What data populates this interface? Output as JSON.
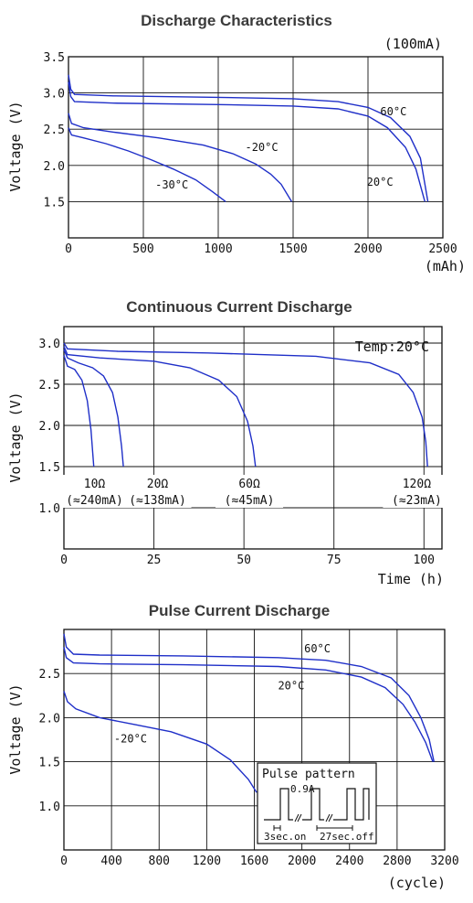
{
  "chart_data": [
    {
      "type": "line",
      "title": "Discharge Characteristics",
      "unit_note": "(100mA)",
      "ylabel": "Voltage (V)",
      "xlabel": "(mAh)",
      "xlim": [
        0,
        2500
      ],
      "ylim": [
        1.0,
        3.5
      ],
      "x_ticks": [
        "0",
        "500",
        "1000",
        "1500",
        "2000",
        "2500"
      ],
      "y_ticks": [
        "1.5",
        "2.0",
        "2.5",
        "3.0",
        "3.5"
      ],
      "series": [
        {
          "name": "60°C",
          "points": [
            [
              0,
              3.25
            ],
            [
              15,
              3.05
            ],
            [
              40,
              2.98
            ],
            [
              300,
              2.96
            ],
            [
              1000,
              2.94
            ],
            [
              1500,
              2.92
            ],
            [
              1800,
              2.88
            ],
            [
              2000,
              2.8
            ],
            [
              2150,
              2.66
            ],
            [
              2280,
              2.4
            ],
            [
              2350,
              2.1
            ],
            [
              2400,
              1.5
            ]
          ]
        },
        {
          "name": "20°C",
          "points": [
            [
              0,
              3.15
            ],
            [
              15,
              2.95
            ],
            [
              40,
              2.88
            ],
            [
              300,
              2.86
            ],
            [
              1000,
              2.84
            ],
            [
              1500,
              2.82
            ],
            [
              1800,
              2.78
            ],
            [
              2000,
              2.68
            ],
            [
              2130,
              2.52
            ],
            [
              2250,
              2.25
            ],
            [
              2320,
              1.95
            ],
            [
              2380,
              1.5
            ]
          ]
        },
        {
          "name": "-20°C",
          "points": [
            [
              0,
              2.72
            ],
            [
              20,
              2.58
            ],
            [
              100,
              2.52
            ],
            [
              300,
              2.46
            ],
            [
              600,
              2.38
            ],
            [
              900,
              2.28
            ],
            [
              1100,
              2.16
            ],
            [
              1250,
              2.02
            ],
            [
              1350,
              1.88
            ],
            [
              1420,
              1.74
            ],
            [
              1490,
              1.5
            ]
          ]
        },
        {
          "name": "-30°C",
          "points": [
            [
              0,
              2.52
            ],
            [
              20,
              2.42
            ],
            [
              100,
              2.38
            ],
            [
              250,
              2.3
            ],
            [
              400,
              2.2
            ],
            [
              550,
              2.08
            ],
            [
              700,
              1.95
            ],
            [
              850,
              1.8
            ],
            [
              960,
              1.64
            ],
            [
              1050,
              1.5
            ]
          ]
        }
      ],
      "series_labels": [
        {
          "text": "60°C",
          "x": 2170,
          "y": 2.69
        },
        {
          "text": "20°C",
          "x": 2080,
          "y": 1.72
        },
        {
          "text": "-20°C",
          "x": 1290,
          "y": 2.2
        },
        {
          "text": "-30°C",
          "x": 690,
          "y": 1.68
        }
      ]
    },
    {
      "type": "line",
      "title": "Continuous Current Discharge",
      "unit_note": "Temp:20°C",
      "ylabel": "Voltage (V)",
      "xlabel": "Time (h)",
      "xlim": [
        0,
        105
      ],
      "ylim": [
        0.5,
        3.2
      ],
      "x_ticks": [
        "0",
        "25",
        "50",
        "75",
        "100"
      ],
      "y_ticks": [
        "1.0",
        "1.5",
        "2.0",
        "2.5",
        "3.0"
      ],
      "series": [
        {
          "name": "10Ω (≈240mA)",
          "points": [
            [
              0,
              2.85
            ],
            [
              1,
              2.72
            ],
            [
              3,
              2.68
            ],
            [
              5,
              2.55
            ],
            [
              6.5,
              2.3
            ],
            [
              7.5,
              1.95
            ],
            [
              8.3,
              1.5
            ]
          ]
        },
        {
          "name": "20Ω (≈138mA)",
          "points": [
            [
              0,
              2.92
            ],
            [
              1,
              2.82
            ],
            [
              4,
              2.76
            ],
            [
              8,
              2.7
            ],
            [
              11,
              2.6
            ],
            [
              13.5,
              2.4
            ],
            [
              15,
              2.1
            ],
            [
              16,
              1.75
            ],
            [
              16.5,
              1.5
            ]
          ]
        },
        {
          "name": "60Ω (≈45mA)",
          "points": [
            [
              0,
              2.96
            ],
            [
              1,
              2.86
            ],
            [
              10,
              2.82
            ],
            [
              25,
              2.78
            ],
            [
              35,
              2.7
            ],
            [
              43,
              2.55
            ],
            [
              48,
              2.35
            ],
            [
              51,
              2.05
            ],
            [
              52.5,
              1.75
            ],
            [
              53.2,
              1.5
            ]
          ]
        },
        {
          "name": "120Ω (≈23mA)",
          "points": [
            [
              0,
              3.0
            ],
            [
              1,
              2.93
            ],
            [
              15,
              2.9
            ],
            [
              40,
              2.88
            ],
            [
              70,
              2.84
            ],
            [
              85,
              2.76
            ],
            [
              93,
              2.62
            ],
            [
              97,
              2.4
            ],
            [
              99.5,
              2.1
            ],
            [
              100.5,
              1.8
            ],
            [
              101,
              1.5
            ]
          ]
        }
      ],
      "series_labels": [
        {
          "name": "10Ω",
          "current": "(≈240mA)",
          "x": 8.5
        },
        {
          "name": "20Ω",
          "current": "(≈138mA)",
          "x": 26
        },
        {
          "name": "60Ω",
          "current": "(≈45mA)",
          "x": 51.5
        },
        {
          "name": "120Ω",
          "current": "(≈23mA)",
          "x": 98
        }
      ]
    },
    {
      "type": "line",
      "title": "Pulse Current Discharge",
      "ylabel": "Voltage (V)",
      "xlabel": "(cycle)",
      "xlim": [
        0,
        3200
      ],
      "ylim": [
        0.5,
        3.0
      ],
      "x_ticks": [
        "0",
        "400",
        "800",
        "1200",
        "1600",
        "2000",
        "2400",
        "2800",
        "3200"
      ],
      "y_ticks": [
        "1.0",
        "1.5",
        "2.0",
        "2.5"
      ],
      "series": [
        {
          "name": "60°C",
          "points": [
            [
              0,
              2.95
            ],
            [
              20,
              2.8
            ],
            [
              80,
              2.72
            ],
            [
              300,
              2.71
            ],
            [
              1000,
              2.7
            ],
            [
              1800,
              2.68
            ],
            [
              2200,
              2.65
            ],
            [
              2500,
              2.58
            ],
            [
              2750,
              2.45
            ],
            [
              2900,
              2.25
            ],
            [
              3000,
              2.0
            ],
            [
              3070,
              1.75
            ],
            [
              3110,
              1.5
            ]
          ]
        },
        {
          "name": "20°C",
          "points": [
            [
              0,
              2.8
            ],
            [
              20,
              2.68
            ],
            [
              80,
              2.62
            ],
            [
              300,
              2.61
            ],
            [
              1000,
              2.6
            ],
            [
              1800,
              2.58
            ],
            [
              2200,
              2.54
            ],
            [
              2500,
              2.46
            ],
            [
              2700,
              2.34
            ],
            [
              2850,
              2.15
            ],
            [
              2950,
              1.95
            ],
            [
              3040,
              1.72
            ],
            [
              3100,
              1.5
            ]
          ]
        },
        {
          "name": "-20°C",
          "points": [
            [
              0,
              2.3
            ],
            [
              30,
              2.18
            ],
            [
              100,
              2.1
            ],
            [
              300,
              2.0
            ],
            [
              600,
              1.92
            ],
            [
              900,
              1.84
            ],
            [
              1200,
              1.7
            ],
            [
              1400,
              1.52
            ],
            [
              1550,
              1.3
            ],
            [
              1620,
              1.15
            ]
          ]
        }
      ],
      "series_labels": [
        {
          "text": "60°C",
          "x": 2130,
          "y": 2.74
        },
        {
          "text": "20°C",
          "x": 1910,
          "y": 2.32
        },
        {
          "text": "-20°C",
          "x": 560,
          "y": 1.72
        }
      ],
      "inset": {
        "title": "Pulse pattern",
        "current": "0.9A",
        "on": "3sec.on",
        "off": "27sec.off"
      }
    }
  ]
}
